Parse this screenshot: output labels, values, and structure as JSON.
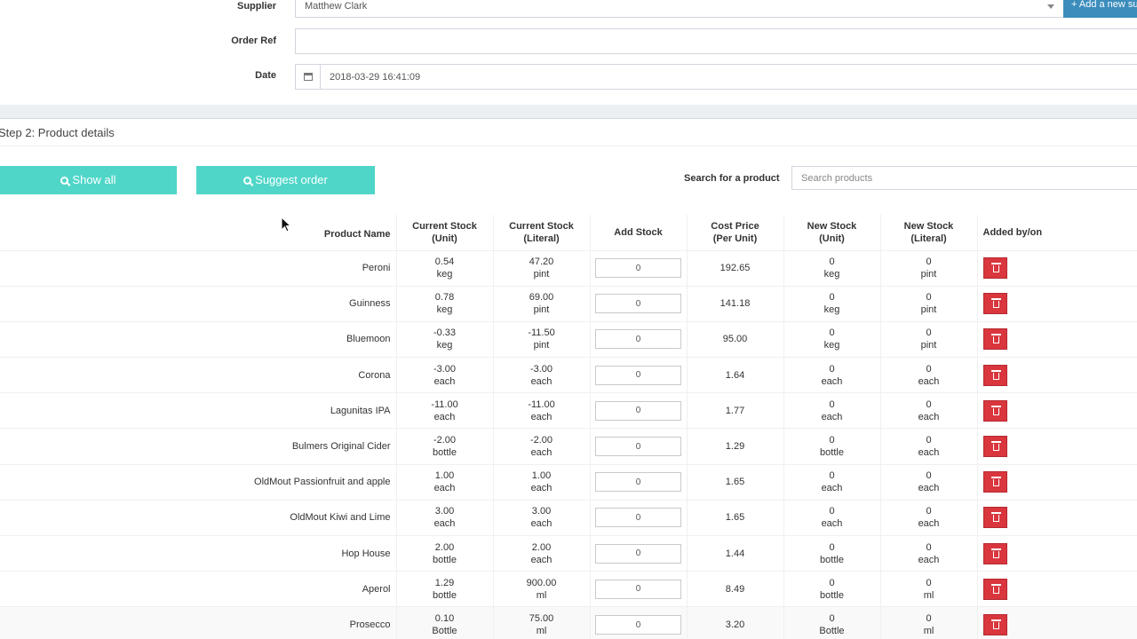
{
  "form": {
    "supplier_label": "Supplier",
    "supplier_value": "Matthew Clark",
    "add_supplier_label": "+ Add a new su",
    "order_ref_label": "Order Ref",
    "order_ref_value": "",
    "date_label": "Date",
    "date_value": "2018-03-29 16:41:09"
  },
  "step": {
    "title": "Step 2: Product details"
  },
  "buttons": {
    "show_all": "Show all",
    "suggest_order": "Suggest order"
  },
  "search": {
    "label": "Search for a product",
    "placeholder": "Search products"
  },
  "table": {
    "headers": {
      "product_name": "Product Name",
      "current_stock_unit": [
        "Current Stock",
        "(Unit)"
      ],
      "current_stock_literal": [
        "Current Stock",
        "(Literal)"
      ],
      "add_stock": "Add Stock",
      "cost_price": [
        "Cost Price",
        "(Per Unit)"
      ],
      "new_stock_unit": [
        "New Stock",
        "(Unit)"
      ],
      "new_stock_literal": [
        "New Stock",
        "(Literal)"
      ],
      "added_by": "Added by/on"
    },
    "rows": [
      {
        "name": "Peroni",
        "cur_unit": "0.54",
        "cur_unit_u": "keg",
        "cur_lit": "47.20",
        "cur_lit_u": "pint",
        "add": "0",
        "cost": "192.65",
        "new_unit": "0",
        "new_unit_u": "keg",
        "new_lit": "0",
        "new_lit_u": "pint"
      },
      {
        "name": "Guinness",
        "cur_unit": "0.78",
        "cur_unit_u": "keg",
        "cur_lit": "69.00",
        "cur_lit_u": "pint",
        "add": "0",
        "cost": "141.18",
        "new_unit": "0",
        "new_unit_u": "keg",
        "new_lit": "0",
        "new_lit_u": "pint"
      },
      {
        "name": "Bluemoon",
        "cur_unit": "-0.33",
        "cur_unit_u": "keg",
        "cur_lit": "-11.50",
        "cur_lit_u": "pint",
        "add": "0",
        "cost": "95.00",
        "new_unit": "0",
        "new_unit_u": "keg",
        "new_lit": "0",
        "new_lit_u": "pint"
      },
      {
        "name": "Corona",
        "cur_unit": "-3.00",
        "cur_unit_u": "each",
        "cur_lit": "-3.00",
        "cur_lit_u": "each",
        "add": "0",
        "cost": "1.64",
        "new_unit": "0",
        "new_unit_u": "each",
        "new_lit": "0",
        "new_lit_u": "each"
      },
      {
        "name": "Lagunitas IPA",
        "cur_unit": "-11.00",
        "cur_unit_u": "each",
        "cur_lit": "-11.00",
        "cur_lit_u": "each",
        "add": "0",
        "cost": "1.77",
        "new_unit": "0",
        "new_unit_u": "each",
        "new_lit": "0",
        "new_lit_u": "each"
      },
      {
        "name": "Bulmers Original Cider",
        "cur_unit": "-2.00",
        "cur_unit_u": "bottle",
        "cur_lit": "-2.00",
        "cur_lit_u": "each",
        "add": "0",
        "cost": "1.29",
        "new_unit": "0",
        "new_unit_u": "bottle",
        "new_lit": "0",
        "new_lit_u": "each"
      },
      {
        "name": "OldMout Passionfruit and apple",
        "cur_unit": "1.00",
        "cur_unit_u": "each",
        "cur_lit": "1.00",
        "cur_lit_u": "each",
        "add": "0",
        "cost": "1.65",
        "new_unit": "0",
        "new_unit_u": "each",
        "new_lit": "0",
        "new_lit_u": "each"
      },
      {
        "name": "OldMout Kiwi and Lime",
        "cur_unit": "3.00",
        "cur_unit_u": "each",
        "cur_lit": "3.00",
        "cur_lit_u": "each",
        "add": "0",
        "cost": "1.65",
        "new_unit": "0",
        "new_unit_u": "each",
        "new_lit": "0",
        "new_lit_u": "each"
      },
      {
        "name": "Hop House",
        "cur_unit": "2.00",
        "cur_unit_u": "bottle",
        "cur_lit": "2.00",
        "cur_lit_u": "each",
        "add": "0",
        "cost": "1.44",
        "new_unit": "0",
        "new_unit_u": "bottle",
        "new_lit": "0",
        "new_lit_u": "each"
      },
      {
        "name": "Aperol",
        "cur_unit": "1.29",
        "cur_unit_u": "bottle",
        "cur_lit": "900.00",
        "cur_lit_u": "ml",
        "add": "0",
        "cost": "8.49",
        "new_unit": "0",
        "new_unit_u": "bottle",
        "new_lit": "0",
        "new_lit_u": "ml"
      },
      {
        "name": "Prosecco",
        "cur_unit": "0.10",
        "cur_unit_u": "Bottle",
        "cur_lit": "75.00",
        "cur_lit_u": "ml",
        "add": "0",
        "cost": "3.20",
        "new_unit": "0",
        "new_unit_u": "Bottle",
        "new_lit": "0",
        "new_lit_u": "ml"
      }
    ]
  },
  "colors": {
    "accent_teal": "#4fd6c8",
    "primary_blue": "#3c8dbc",
    "delete_red": "#d9363e",
    "literal_green": "#3cb55d"
  },
  "icons": {
    "search_button_icon": "search-icon",
    "delete_icon": "trash-icon",
    "date_icon": "calendar-icon"
  }
}
